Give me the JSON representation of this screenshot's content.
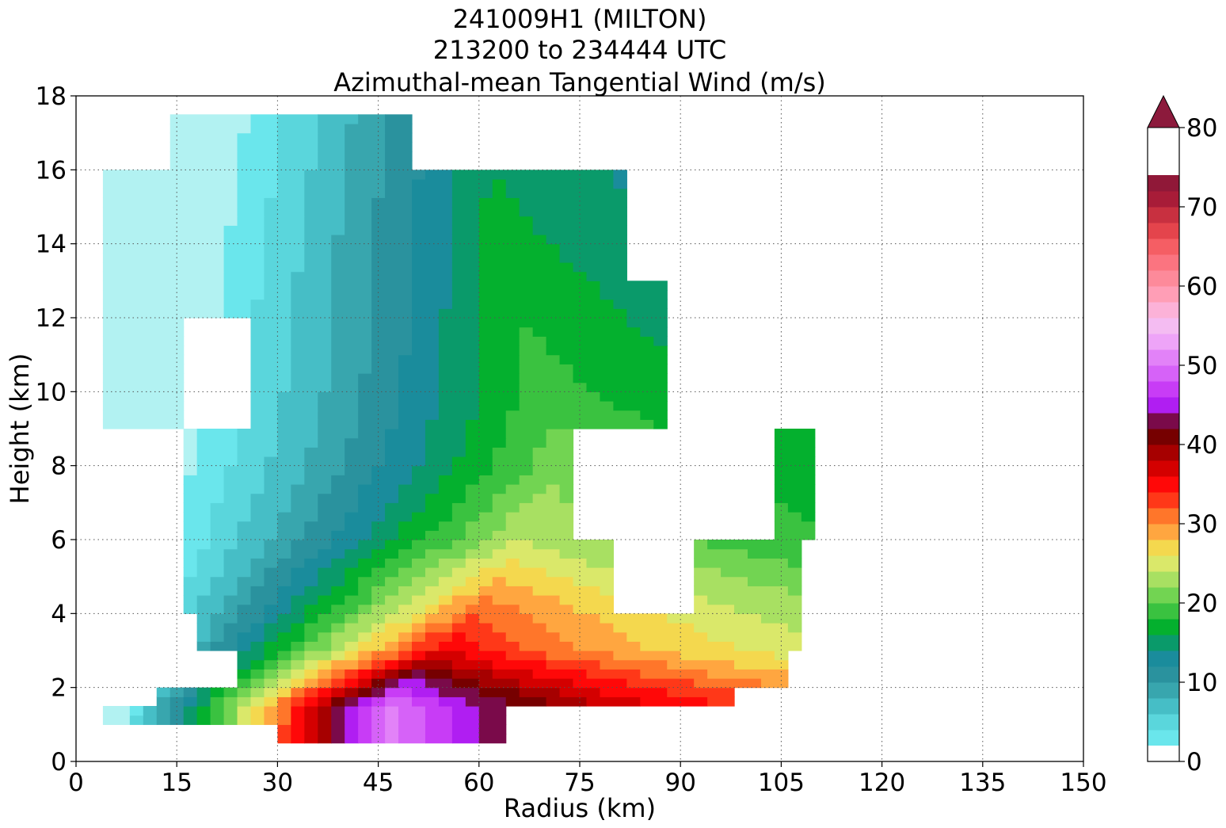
{
  "titles": [
    "241009H1 (MILTON)",
    "213200 to 234444 UTC",
    "Azimuthal-mean Tangential Wind (m/s)"
  ],
  "chart_data": {
    "type": "heatmap",
    "subtype": "filled-contour",
    "xlabel": "Radius (km)",
    "ylabel": "Height (km)",
    "xlim": [
      0,
      150
    ],
    "ylim": [
      0,
      18
    ],
    "xticks": [
      0,
      15,
      30,
      45,
      60,
      75,
      90,
      105,
      120,
      135,
      150
    ],
    "yticks": [
      0,
      2,
      4,
      6,
      8,
      10,
      12,
      14,
      16,
      18
    ],
    "grid": true,
    "colorbar": {
      "min": 0,
      "max": 80,
      "step": 2,
      "extend": "max",
      "ticks": [
        0,
        10,
        20,
        30,
        40,
        50,
        60,
        70,
        80
      ],
      "colors": [
        "#ffffff",
        "#b2f2f2",
        "#6ae6ec",
        "#5ad6dc",
        "#46bec6",
        "#38a6ae",
        "#2a929e",
        "#1a8c9c",
        "#0a9a6a",
        "#04b02e",
        "#3ac240",
        "#72d452",
        "#a8e062",
        "#dae86a",
        "#f4d84e",
        "#ffa640",
        "#ff762a",
        "#ff3818",
        "#ff0808",
        "#d40000",
        "#a60000",
        "#760000",
        "#7a0a4a",
        "#b01ef2",
        "#c83cf6",
        "#d662f8",
        "#e282f8",
        "#eea4f8",
        "#f4bcf2",
        "#fcb2d8",
        "#ff9eb6",
        "#fd8a9a",
        "#fb7480",
        "#f55e64",
        "#e4444c",
        "#c83040",
        "#a81c38",
        "#901838"
      ],
      "extend_color": "#8c1a3c"
    },
    "field_description_ranges": {
      "x_km": [
        4,
        110
      ],
      "z_km": [
        0.5,
        17.5
      ],
      "max_wind_region": "radius 30-75 km, height 1-2 km, >= 46 m/s"
    }
  }
}
